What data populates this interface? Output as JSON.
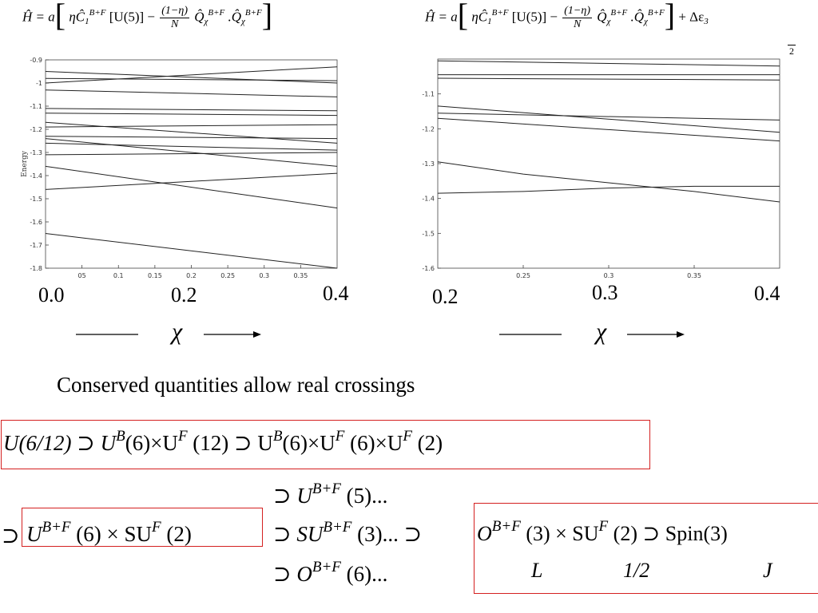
{
  "formula_left": {
    "text": "Ĥ = a[ηĈ1B+F[U(5)] − (1−η)/N Q̂χB+F . Q̂χB+F]",
    "lhs": "Ĥ",
    "eq": "=",
    "a": "a",
    "eta_c": "ηĈ",
    "sub1": "1",
    "sup_bf": "B+F",
    "u5": "[U(5)] −",
    "num": "(1−η)",
    "den": "N",
    "q": "Q̂",
    "chi": "χ",
    "dot": ".Q̂"
  },
  "formula_right": {
    "text": "Ĥ = a[ηĈ1B+F[U(5)] − (1−η)/N Q̂χB+F . Q̂χB+F] + Δε3/2",
    "extra": "+ Δε",
    "extra_sub": "3",
    "extra_den": "2"
  },
  "chart_data": [
    {
      "type": "line",
      "title": "",
      "xlabel": "χ",
      "ylabel": "Energy",
      "xlim": [
        0.0,
        0.4
      ],
      "ylim": [
        -1.8,
        -0.9
      ],
      "x_ticks": [
        "05",
        "0.1",
        "0.15",
        "0.2",
        "0.25",
        "0.3",
        "0.35"
      ],
      "y_ticks": [
        "-0.9",
        "-1",
        "-1.1",
        "-1.2",
        "-1.3",
        "-1.4",
        "-1.5",
        "-1.6",
        "-1.7",
        "-1.8"
      ],
      "x_labels_large": [
        "0.0",
        "0.2",
        "0.4"
      ],
      "grid": false,
      "series": [
        {
          "x": [
            0.0,
            0.4
          ],
          "y": [
            -0.95,
            -1.0
          ]
        },
        {
          "x": [
            0.0,
            0.4
          ],
          "y": [
            -1.0,
            -0.93
          ]
        },
        {
          "x": [
            0.0,
            0.4
          ],
          "y": [
            -0.98,
            -0.99
          ]
        },
        {
          "x": [
            0.0,
            0.4
          ],
          "y": [
            -1.03,
            -1.06
          ]
        },
        {
          "x": [
            0.0,
            0.4
          ],
          "y": [
            -1.11,
            -1.12
          ]
        },
        {
          "x": [
            0.0,
            0.4
          ],
          "y": [
            -1.13,
            -1.14
          ]
        },
        {
          "x": [
            0.0,
            0.4
          ],
          "y": [
            -1.17,
            -1.26
          ]
        },
        {
          "x": [
            0.0,
            0.4
          ],
          "y": [
            -1.19,
            -1.18
          ]
        },
        {
          "x": [
            0.0,
            0.4
          ],
          "y": [
            -1.23,
            -1.24
          ]
        },
        {
          "x": [
            0.0,
            0.4
          ],
          "y": [
            -1.26,
            -1.29
          ]
        },
        {
          "x": [
            0.0,
            0.4
          ],
          "y": [
            -1.31,
            -1.3
          ]
        },
        {
          "x": [
            0.0,
            0.4
          ],
          "y": [
            -1.24,
            -1.36
          ]
        },
        {
          "x": [
            0.0,
            0.4
          ],
          "y": [
            -1.36,
            -1.54
          ]
        },
        {
          "x": [
            0.0,
            0.4
          ],
          "y": [
            -1.46,
            -1.39
          ]
        },
        {
          "x": [
            0.0,
            0.4
          ],
          "y": [
            -1.65,
            -1.8
          ]
        }
      ]
    },
    {
      "type": "line",
      "title": "",
      "xlabel": "χ",
      "ylabel": "",
      "xlim": [
        0.2,
        0.4
      ],
      "ylim": [
        -1.6,
        -1.0
      ],
      "x_ticks": [
        "0.25",
        "0.3",
        "0.35"
      ],
      "y_ticks": [
        "-1.1",
        "-1.2",
        "-1.3",
        "-1.4",
        "-1.5",
        "-1.6"
      ],
      "x_labels_large": [
        "0.2",
        "0.3",
        "0.4"
      ],
      "grid": false,
      "series": [
        {
          "x": [
            0.2,
            0.4
          ],
          "y": [
            -1.005,
            -1.02
          ]
        },
        {
          "x": [
            0.2,
            0.4
          ],
          "y": [
            -1.045,
            -1.045
          ]
        },
        {
          "x": [
            0.2,
            0.4
          ],
          "y": [
            -1.055,
            -1.06
          ]
        },
        {
          "x": [
            0.2,
            0.4
          ],
          "y": [
            -1.135,
            -1.21
          ]
        },
        {
          "x": [
            0.2,
            0.4
          ],
          "y": [
            -1.155,
            -1.175
          ]
        },
        {
          "x": [
            0.2,
            0.4
          ],
          "y": [
            -1.17,
            -1.235
          ]
        },
        {
          "x": [
            0.2,
            0.25,
            0.3,
            0.35,
            0.4
          ],
          "y": [
            -1.295,
            -1.33,
            -1.355,
            -1.38,
            -1.41
          ]
        },
        {
          "x": [
            0.2,
            0.25,
            0.3,
            0.35,
            0.4
          ],
          "y": [
            -1.385,
            -1.38,
            -1.37,
            -1.365,
            -1.365
          ]
        }
      ]
    }
  ],
  "chi_symbol": "χ",
  "caption": "Conserved quantities allow real crossings",
  "chain1": {
    "u612": "U(6/12) ⊃ U",
    "b": "B",
    "p6x": "(6)×U",
    "f": "F",
    "p12": "(12) ⊃ U",
    "p6xuf": "(6)×U",
    "p6x2": "(6)×U",
    "p2": "(2)"
  },
  "branch_top": {
    "sup": "U",
    "bf": "B+F",
    "rest": "(5)..."
  },
  "branch_mid_left": {
    "sup": "⊃",
    "u": "U",
    "bf": "B+F",
    "rest": "(6) × SU",
    "f": "F",
    "end": "(2)"
  },
  "branch_mid": {
    "sup": "⊃ SU",
    "bf": "B+F",
    "rest": "(3)... ⊃"
  },
  "branch_right": {
    "o": "O",
    "bf": "B+F",
    "rest": "(3) × SU",
    "f": "F",
    "end": "(2) ⊃ Spin(3)"
  },
  "branch_bot": {
    "sup": "⊃ O",
    "bf": "B+F",
    "rest": "(6)..."
  },
  "quantum_numbers": {
    "l": "L",
    "half": "1/2",
    "j": "J"
  },
  "subset_symbol": "⊃"
}
